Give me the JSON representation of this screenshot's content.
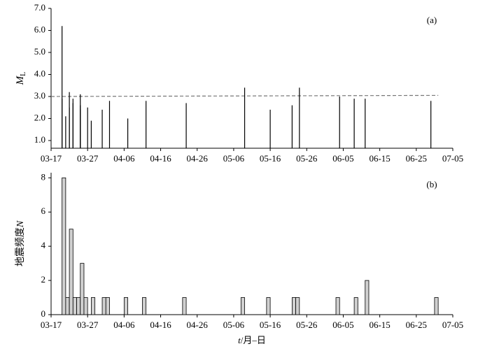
{
  "chart_data": [
    {
      "type": "stem",
      "annotation": "(a)",
      "y_label": "M",
      "y_label_sub": "L",
      "color": "#000000",
      "x": [
        "03-20",
        "03-20",
        "03-21",
        "03-22",
        "03-22",
        "03-23",
        "03-23",
        "03-25",
        "03-25",
        "03-25",
        "03-27",
        "03-28",
        "03-31",
        "04-02",
        "04-07",
        "04-12",
        "04-23",
        "05-09",
        "05-16",
        "05-22",
        "05-24",
        "06-04",
        "06-08",
        "06-11",
        "06-29"
      ],
      "values": [
        6.2,
        2.9,
        2.1,
        3.2,
        2.5,
        2.9,
        2.7,
        2.6,
        3.1,
        2.4,
        2.5,
        1.9,
        2.4,
        2.8,
        2.0,
        2.8,
        2.7,
        3.4,
        2.4,
        2.6,
        3.4,
        3.0,
        2.9,
        2.9,
        2.8
      ],
      "reference_line": {
        "x": [
          "03-17",
          "07-01"
        ],
        "values": [
          3.0,
          3.05
        ],
        "color": "#777777",
        "dashed": true
      },
      "xlim": [
        "03-17",
        "07-05"
      ],
      "xticks": [
        "03-17",
        "03-27",
        "04-06",
        "04-16",
        "04-26",
        "05-06",
        "05-16",
        "05-26",
        "06-05",
        "06-15",
        "06-25",
        "07-05"
      ],
      "ylim": [
        0.65,
        7.0
      ],
      "yticks": [
        {
          "value": 1,
          "label": "1.0"
        },
        {
          "value": 2,
          "label": "2.0"
        },
        {
          "value": 3,
          "label": "3.0"
        },
        {
          "value": 4,
          "label": "4.0"
        },
        {
          "value": 5,
          "label": "5.0"
        },
        {
          "value": 6,
          "label": "6.0"
        },
        {
          "value": 7,
          "label": "7.0"
        }
      ]
    },
    {
      "type": "bar",
      "annotation": "(b)",
      "y_label": "地震频度",
      "y_label_var": "N",
      "x_label_var": "t",
      "x_label": "/月–日",
      "color": "#d0d0d0",
      "x": [
        "03-20",
        "03-21",
        "03-22",
        "03-23",
        "03-24",
        "03-25",
        "03-26",
        "03-28",
        "03-31",
        "04-01",
        "04-06",
        "04-11",
        "04-22",
        "05-08",
        "05-15",
        "05-22",
        "05-23",
        "06-03",
        "06-08",
        "06-11",
        "06-30"
      ],
      "values": [
        8,
        1,
        5,
        1,
        1,
        3,
        1,
        1,
        1,
        1,
        1,
        1,
        1,
        1,
        1,
        1,
        1,
        1,
        1,
        2,
        1
      ],
      "xlim": [
        "03-17",
        "07-05"
      ],
      "xticks": [
        "03-17",
        "03-27",
        "04-06",
        "04-16",
        "04-26",
        "05-06",
        "05-16",
        "05-26",
        "06-05",
        "06-15",
        "06-25",
        "07-05"
      ],
      "ylim": [
        0,
        8.3
      ],
      "yticks": [
        0,
        2,
        4,
        6,
        8
      ]
    }
  ]
}
